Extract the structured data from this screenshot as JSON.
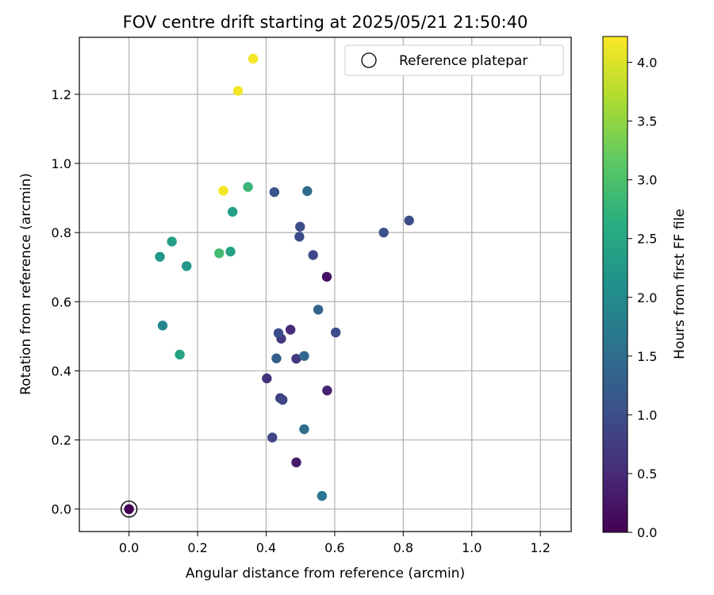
{
  "chart_data": {
    "type": "scatter",
    "title": "FOV centre drift starting at 2025/05/21 21:50:40",
    "xlabel": "Angular distance from reference (arcmin)",
    "ylabel": "Rotation from reference (arcmin)",
    "xlim": [
      -0.145,
      1.29
    ],
    "ylim": [
      -0.065,
      1.365
    ],
    "xticks": [
      0.0,
      0.2,
      0.4,
      0.6,
      0.8,
      1.0,
      1.2
    ],
    "yticks": [
      0.0,
      0.2,
      0.4,
      0.6,
      0.8,
      1.0,
      1.2
    ],
    "xtick_labels": [
      "0.0",
      "0.2",
      "0.4",
      "0.6",
      "0.8",
      "1.0",
      "1.2"
    ],
    "ytick_labels": [
      "0.0",
      "0.2",
      "0.4",
      "0.6",
      "0.8",
      "1.0",
      "1.2"
    ],
    "grid": true,
    "legend_position": "top-right",
    "legend": [
      {
        "label": "Reference platepar",
        "marker": "open-circle"
      }
    ],
    "reference_point": {
      "x": 0.0,
      "y": 0.0
    },
    "colorbar": {
      "label": "Hours from first FF file",
      "colormap": "viridis",
      "range": [
        0.0,
        4.22
      ],
      "ticks": [
        0.0,
        0.5,
        1.0,
        1.5,
        2.0,
        2.5,
        3.0,
        3.5,
        4.0
      ],
      "tick_labels": [
        "0.0",
        "0.5",
        "1.0",
        "1.5",
        "2.0",
        "2.5",
        "3.0",
        "3.5",
        "4.0"
      ]
    },
    "points": [
      {
        "x": 0.0,
        "y": 0.0,
        "h": 0.0
      },
      {
        "x": 0.488,
        "y": 0.135,
        "h": 0.3
      },
      {
        "x": 0.577,
        "y": 0.672,
        "h": 0.2
      },
      {
        "x": 0.578,
        "y": 0.343,
        "h": 0.4
      },
      {
        "x": 0.471,
        "y": 0.519,
        "h": 0.5
      },
      {
        "x": 0.402,
        "y": 0.378,
        "h": 0.6
      },
      {
        "x": 0.444,
        "y": 0.493,
        "h": 0.7
      },
      {
        "x": 0.488,
        "y": 0.435,
        "h": 0.7
      },
      {
        "x": 0.441,
        "y": 0.321,
        "h": 0.8
      },
      {
        "x": 0.448,
        "y": 0.316,
        "h": 0.9
      },
      {
        "x": 0.537,
        "y": 0.735,
        "h": 0.9
      },
      {
        "x": 0.418,
        "y": 0.207,
        "h": 0.9
      },
      {
        "x": 0.497,
        "y": 0.788,
        "h": 1.0
      },
      {
        "x": 0.499,
        "y": 0.817,
        "h": 1.0
      },
      {
        "x": 0.436,
        "y": 0.509,
        "h": 1.0
      },
      {
        "x": 0.603,
        "y": 0.511,
        "h": 1.0
      },
      {
        "x": 0.817,
        "y": 0.835,
        "h": 1.0
      },
      {
        "x": 0.743,
        "y": 0.8,
        "h": 1.05
      },
      {
        "x": 0.424,
        "y": 0.917,
        "h": 1.1
      },
      {
        "x": 0.43,
        "y": 0.436,
        "h": 1.25
      },
      {
        "x": 0.552,
        "y": 0.577,
        "h": 1.35
      },
      {
        "x": 0.511,
        "y": 0.443,
        "h": 1.4
      },
      {
        "x": 0.52,
        "y": 0.92,
        "h": 1.45
      },
      {
        "x": 0.511,
        "y": 0.231,
        "h": 1.5
      },
      {
        "x": 0.563,
        "y": 0.038,
        "h": 1.65
      },
      {
        "x": 0.098,
        "y": 0.531,
        "h": 1.9
      },
      {
        "x": 0.09,
        "y": 0.73,
        "h": 2.2
      },
      {
        "x": 0.168,
        "y": 0.703,
        "h": 2.2
      },
      {
        "x": 0.302,
        "y": 0.86,
        "h": 2.35
      },
      {
        "x": 0.125,
        "y": 0.774,
        "h": 2.35
      },
      {
        "x": 0.296,
        "y": 0.745,
        "h": 2.4
      },
      {
        "x": 0.148,
        "y": 0.447,
        "h": 2.45
      },
      {
        "x": 0.347,
        "y": 0.932,
        "h": 2.8
      },
      {
        "x": 0.263,
        "y": 0.74,
        "h": 2.9
      },
      {
        "x": 0.275,
        "y": 0.921,
        "h": 4.15
      },
      {
        "x": 0.318,
        "y": 1.21,
        "h": 4.15
      },
      {
        "x": 0.362,
        "y": 1.303,
        "h": 4.15
      }
    ]
  }
}
